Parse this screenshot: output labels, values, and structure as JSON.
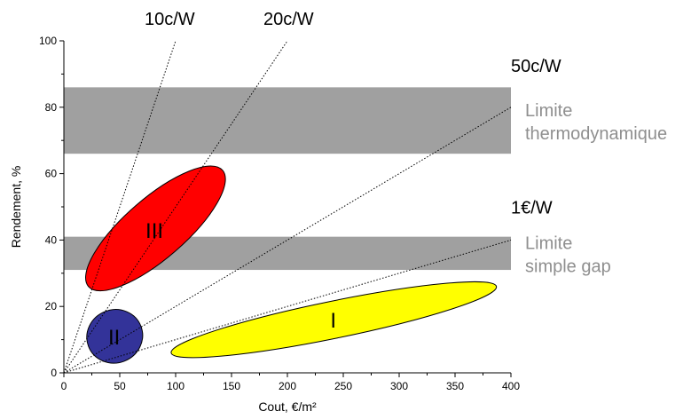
{
  "chart_data": {
    "type": "scatter",
    "title": "",
    "xlabel": "Cout, €/m²",
    "ylabel": "Rendement, %",
    "xlim": [
      0,
      400
    ],
    "ylim": [
      0,
      100
    ],
    "xticks": [
      0,
      50,
      100,
      150,
      200,
      250,
      300,
      350,
      400
    ],
    "yticks": [
      0,
      20,
      40,
      60,
      80,
      100
    ],
    "grid": false,
    "cost_lines": [
      {
        "label": "10c/W",
        "x_end": 100,
        "y_end": 100
      },
      {
        "label": "20c/W",
        "x_end": 200,
        "y_end": 100
      },
      {
        "label": "50c/W",
        "x_end": 400,
        "y_end": 80
      },
      {
        "label": "1€/W",
        "x_end": 400,
        "y_end": 40
      }
    ],
    "bands": [
      {
        "label_lines": [
          "Limite",
          "thermodynamique"
        ],
        "y_from": 66,
        "y_to": 86,
        "color": "#a0a0a0"
      },
      {
        "label_lines": [
          "Limite",
          "simple gap"
        ],
        "y_from": 31,
        "y_to": 41,
        "color": "#a0a0a0"
      }
    ],
    "regions": [
      {
        "label": "I",
        "color": "#ffff00",
        "cx": 241,
        "cy": 16,
        "p1": [
          96,
          6
        ],
        "p2": [
          387,
          26
        ],
        "thickness": 21
      },
      {
        "label": "II",
        "color": "#333399",
        "cx": 45,
        "cy": 11,
        "p1": [
          22,
          8
        ],
        "p2": [
          69,
          14
        ],
        "thickness": 30
      },
      {
        "label": "III",
        "color": "#ff0000",
        "cx": 81,
        "cy": 43,
        "p1": [
          22,
          26
        ],
        "p2": [
          142,
          61
        ],
        "thickness": 34
      }
    ]
  }
}
